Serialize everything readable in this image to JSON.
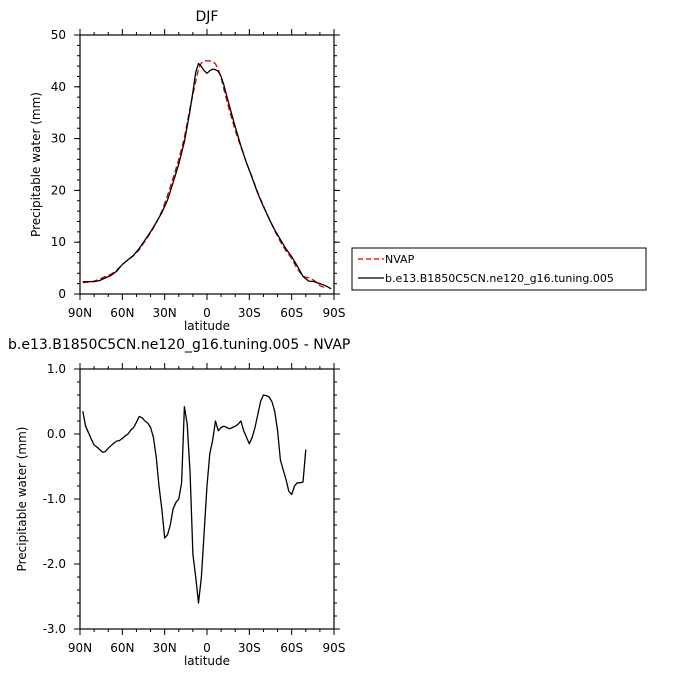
{
  "chart_data": [
    {
      "type": "line",
      "title": "DJF",
      "xlabel": "latitude",
      "ylabel": "Precipitable water (mm)",
      "xlim": [
        90,
        -90
      ],
      "ylim": [
        0,
        50
      ],
      "x_ticks": [
        90,
        60,
        30,
        0,
        -30,
        -60,
        -90
      ],
      "x_tick_labels": [
        "90N",
        "60N",
        "30N",
        "0",
        "30S",
        "60S",
        "90S"
      ],
      "y_ticks": [
        0,
        10,
        20,
        30,
        40,
        50
      ],
      "y_tick_labels": [
        "0",
        "10",
        "20",
        "30",
        "40",
        "50"
      ],
      "legend": {
        "placement": "right",
        "entries": [
          "NVAP",
          "b.e13.B1850C5CN.ne120_g16.tuning.005"
        ]
      },
      "series": [
        {
          "name": "NVAP",
          "color": "#cc0000",
          "dash": "dashed",
          "points": [
            [
              88,
              2.2
            ],
            [
              84,
              2.3
            ],
            [
              80,
              2.5
            ],
            [
              76,
              2.9
            ],
            [
              72,
              3.4
            ],
            [
              68,
              3.8
            ],
            [
              64,
              4.6
            ],
            [
              60,
              5.7
            ],
            [
              56,
              6.6
            ],
            [
              52,
              7.4
            ],
            [
              48,
              8.6
            ],
            [
              44,
              10.2
            ],
            [
              40,
              11.8
            ],
            [
              36,
              13.7
            ],
            [
              32,
              16.0
            ],
            [
              28,
              19.0
            ],
            [
              24,
              22.4
            ],
            [
              20,
              26.0
            ],
            [
              16,
              30.2
            ],
            [
              12,
              36.0
            ],
            [
              8,
              41.0
            ],
            [
              6,
              43.5
            ],
            [
              4,
              44.6
            ],
            [
              2,
              45.0
            ],
            [
              0,
              45.0
            ],
            [
              -2,
              45.0
            ],
            [
              -4,
              44.9
            ],
            [
              -6,
              44.4
            ],
            [
              -8,
              43.3
            ],
            [
              -10,
              41.8
            ],
            [
              -12,
              39.5
            ],
            [
              -16,
              35.3
            ],
            [
              -20,
              31.6
            ],
            [
              -24,
              28.4
            ],
            [
              -28,
              25.3
            ],
            [
              -32,
              22.5
            ],
            [
              -36,
              19.6
            ],
            [
              -40,
              17.0
            ],
            [
              -44,
              14.6
            ],
            [
              -48,
              12.2
            ],
            [
              -52,
              10.1
            ],
            [
              -56,
              8.3
            ],
            [
              -60,
              6.9
            ],
            [
              -64,
              4.8
            ],
            [
              -68,
              3.4
            ],
            [
              -72,
              3.1
            ],
            [
              -76,
              2.6
            ],
            [
              -80,
              1.6
            ],
            [
              -84,
              1.2
            ]
          ]
        },
        {
          "name": "b.e13.B1850C5CN.ne120_g16.tuning.005",
          "color": "#000000",
          "dash": "solid",
          "points": [
            [
              88,
              2.4
            ],
            [
              84,
              2.4
            ],
            [
              80,
              2.4
            ],
            [
              76,
              2.6
            ],
            [
              72,
              3.1
            ],
            [
              68,
              3.6
            ],
            [
              64,
              4.4
            ],
            [
              60,
              5.7
            ],
            [
              56,
              6.6
            ],
            [
              52,
              7.5
            ],
            [
              48,
              8.8
            ],
            [
              44,
              10.4
            ],
            [
              40,
              12.0
            ],
            [
              36,
              13.8
            ],
            [
              32,
              15.7
            ],
            [
              28,
              18.1
            ],
            [
              24,
              21.5
            ],
            [
              20,
              25.1
            ],
            [
              16,
              29.4
            ],
            [
              12,
              35.5
            ],
            [
              10,
              39.0
            ],
            [
              8,
              42.8
            ],
            [
              6,
              44.5
            ],
            [
              4,
              43.9
            ],
            [
              2,
              43.1
            ],
            [
              0,
              42.6
            ],
            [
              -2,
              43.1
            ],
            [
              -4,
              43.4
            ],
            [
              -6,
              43.3
            ],
            [
              -8,
              43.0
            ],
            [
              -10,
              42.0
            ],
            [
              -12,
              40.3
            ],
            [
              -16,
              36.2
            ],
            [
              -20,
              32.3
            ],
            [
              -24,
              28.6
            ],
            [
              -28,
              25.3
            ],
            [
              -32,
              22.4
            ],
            [
              -36,
              19.4
            ],
            [
              -40,
              16.9
            ],
            [
              -44,
              14.5
            ],
            [
              -48,
              12.4
            ],
            [
              -52,
              10.5
            ],
            [
              -56,
              8.7
            ],
            [
              -60,
              7.2
            ],
            [
              -64,
              5.4
            ],
            [
              -68,
              3.4
            ],
            [
              -72,
              2.5
            ],
            [
              -76,
              2.4
            ],
            [
              -80,
              2.0
            ],
            [
              -84,
              1.6
            ],
            [
              -88,
              1.0
            ]
          ]
        }
      ]
    },
    {
      "type": "line",
      "title": "b.e13.B1850C5CN.ne120_g16.tuning.005 - NVAP",
      "xlabel": "latitude",
      "ylabel": "Precipitable water (mm)",
      "xlim": [
        90,
        -90
      ],
      "ylim": [
        -3,
        1
      ],
      "x_ticks": [
        90,
        60,
        30,
        0,
        -30,
        -60,
        -90
      ],
      "x_tick_labels": [
        "90N",
        "60N",
        "30N",
        "0",
        "30S",
        "60S",
        "90S"
      ],
      "y_ticks": [
        -3,
        -2,
        -1,
        0,
        1
      ],
      "y_tick_labels": [
        "-3.0",
        "-2.0",
        "-1.0",
        "0.0",
        "1.0"
      ],
      "series": [
        {
          "color": "#000000",
          "dash": "solid",
          "points": [
            [
              88,
              0.35
            ],
            [
              86,
              0.12
            ],
            [
              84,
              0.02
            ],
            [
              82,
              -0.08
            ],
            [
              80,
              -0.17
            ],
            [
              78,
              -0.2
            ],
            [
              76,
              -0.24
            ],
            [
              74,
              -0.28
            ],
            [
              72,
              -0.27
            ],
            [
              70,
              -0.22
            ],
            [
              68,
              -0.18
            ],
            [
              66,
              -0.14
            ],
            [
              64,
              -0.11
            ],
            [
              62,
              -0.1
            ],
            [
              60,
              -0.07
            ],
            [
              58,
              -0.03
            ],
            [
              56,
              0.0
            ],
            [
              54,
              0.06
            ],
            [
              52,
              0.1
            ],
            [
              50,
              0.18
            ],
            [
              48,
              0.27
            ],
            [
              46,
              0.25
            ],
            [
              44,
              0.2
            ],
            [
              42,
              0.17
            ],
            [
              40,
              0.1
            ],
            [
              38,
              -0.05
            ],
            [
              36,
              -0.35
            ],
            [
              34,
              -0.8
            ],
            [
              32,
              -1.15
            ],
            [
              30,
              -1.6
            ],
            [
              28,
              -1.55
            ],
            [
              26,
              -1.4
            ],
            [
              24,
              -1.15
            ],
            [
              22,
              -1.05
            ],
            [
              20,
              -1.0
            ],
            [
              18,
              -0.75
            ],
            [
              16,
              0.42
            ],
            [
              14,
              0.15
            ],
            [
              12,
              -0.6
            ],
            [
              10,
              -1.85
            ],
            [
              8,
              -2.2
            ],
            [
              6,
              -2.6
            ],
            [
              4,
              -2.2
            ],
            [
              2,
              -1.5
            ],
            [
              0,
              -0.8
            ],
            [
              -2,
              -0.3
            ],
            [
              -4,
              -0.1
            ],
            [
              -6,
              0.2
            ],
            [
              -8,
              0.05
            ],
            [
              -10,
              0.1
            ],
            [
              -12,
              0.12
            ],
            [
              -14,
              0.1
            ],
            [
              -16,
              0.08
            ],
            [
              -18,
              0.1
            ],
            [
              -20,
              0.12
            ],
            [
              -22,
              0.15
            ],
            [
              -24,
              0.2
            ],
            [
              -26,
              0.05
            ],
            [
              -28,
              -0.05
            ],
            [
              -30,
              -0.15
            ],
            [
              -32,
              -0.05
            ],
            [
              -34,
              0.1
            ],
            [
              -36,
              0.3
            ],
            [
              -38,
              0.5
            ],
            [
              -40,
              0.6
            ],
            [
              -42,
              0.59
            ],
            [
              -44,
              0.57
            ],
            [
              -46,
              0.5
            ],
            [
              -48,
              0.35
            ],
            [
              -50,
              0.05
            ],
            [
              -52,
              -0.4
            ],
            [
              -54,
              -0.55
            ],
            [
              -56,
              -0.7
            ],
            [
              -58,
              -0.88
            ],
            [
              -60,
              -0.93
            ],
            [
              -62,
              -0.8
            ],
            [
              -64,
              -0.75
            ],
            [
              -66,
              -0.75
            ],
            [
              -68,
              -0.74
            ],
            [
              -70,
              -0.24
            ]
          ]
        }
      ]
    }
  ]
}
